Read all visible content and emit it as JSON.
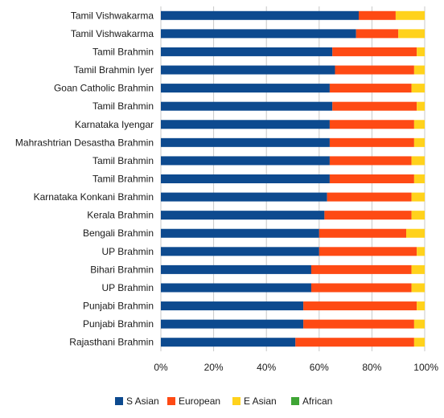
{
  "chart_data": {
    "type": "bar",
    "orientation": "horizontal",
    "stacked": true,
    "percent": true,
    "title": "",
    "xlabel": "",
    "ylabel": "",
    "xlim": [
      0,
      100
    ],
    "x_ticks": [
      "0%",
      "20%",
      "40%",
      "60%",
      "80%",
      "100%"
    ],
    "x_tick_values": [
      0,
      20,
      40,
      60,
      80,
      100
    ],
    "grid": true,
    "legend_position": "bottom",
    "categories": [
      "Tamil Vishwakarma",
      "Tamil Vishwakarma",
      "Tamil Brahmin",
      "Tamil Brahmin Iyer",
      "Goan Catholic Brahmin",
      "Tamil Brahmin",
      "Karnataka Iyengar",
      "Mahrashtrian Desastha Brahmin",
      "Tamil Brahmin",
      "Tamil Brahmin",
      "Karnataka Konkani Brahmin",
      "Kerala Brahmin",
      "Bengali Brahmin",
      "UP Brahmin",
      "Bihari Brahmin",
      "UP Brahmin",
      "Punjabi Brahmin",
      "Punjabi Brahmin",
      "Rajasthani Brahmin"
    ],
    "series": [
      {
        "name": "S Asian",
        "color": "#0d4a8f",
        "values": [
          75,
          74,
          65,
          66,
          64,
          65,
          64,
          64,
          64,
          64,
          63,
          62,
          60,
          60,
          57,
          57,
          54,
          54,
          51
        ]
      },
      {
        "name": "European",
        "color": "#fe4a14",
        "values": [
          14,
          16,
          32,
          30,
          31,
          32,
          32,
          32,
          31,
          32,
          32,
          33,
          33,
          37,
          38,
          38,
          43,
          42,
          45
        ]
      },
      {
        "name": "E Asian",
        "color": "#ffd21c",
        "values": [
          11,
          10,
          3,
          4,
          5,
          3,
          4,
          4,
          5,
          4,
          5,
          5,
          7,
          3,
          5,
          5,
          3,
          4,
          4
        ]
      },
      {
        "name": "African",
        "color": "#3fa535",
        "values": [
          0,
          0,
          0,
          0,
          0,
          0,
          0,
          0,
          0,
          0,
          0,
          0,
          0,
          0,
          0,
          0,
          0,
          0,
          0
        ]
      }
    ]
  }
}
